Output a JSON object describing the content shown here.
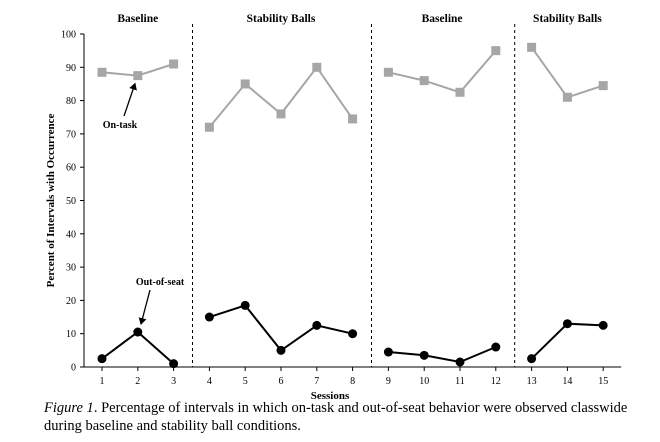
{
  "chart_data": {
    "type": "line",
    "ylabel": "Percent of Intervals with Occurrence",
    "xlabel": "Sessions",
    "ylim": [
      0,
      100
    ],
    "yticks": [
      0,
      10,
      20,
      30,
      40,
      50,
      60,
      70,
      80,
      90,
      100
    ],
    "xticks": [
      1,
      2,
      3,
      4,
      5,
      6,
      7,
      8,
      9,
      10,
      11,
      12,
      13,
      14,
      15
    ],
    "grid": false,
    "legend": "none",
    "phases": [
      {
        "label": "Baseline",
        "sessions": [
          1,
          3
        ]
      },
      {
        "label": "Stability Balls",
        "sessions": [
          4,
          8
        ]
      },
      {
        "label": "Baseline",
        "sessions": [
          9,
          12
        ]
      },
      {
        "label": "Stability Balls",
        "sessions": [
          13,
          15
        ]
      }
    ],
    "phase_dividers_after_session": [
      3,
      8,
      12
    ],
    "series": [
      {
        "color": "#a6a6a6",
        "marker": "square",
        "x": [
          1,
          2,
          3,
          4,
          5,
          6,
          7,
          8,
          9,
          10,
          11,
          12,
          13,
          14,
          15
        ],
        "values": [
          88.5,
          87.5,
          91,
          72,
          85,
          76,
          90,
          74.5,
          88.5,
          86,
          82.5,
          95,
          96,
          81,
          84.5
        ]
      },
      {
        "color": "#000000",
        "marker": "circle",
        "x": [
          1,
          2,
          3,
          4,
          5,
          6,
          7,
          8,
          9,
          10,
          11,
          12,
          13,
          14,
          15
        ],
        "values": [
          2.5,
          10.5,
          1,
          15,
          18.5,
          5,
          12.5,
          10,
          4.5,
          3.5,
          1.5,
          6,
          2.5,
          13,
          12.5
        ]
      }
    ],
    "annotations": [
      {
        "text": "On-task",
        "points_to": {
          "x": 2,
          "y": 87.5
        }
      },
      {
        "text": "Out-of-seat",
        "points_to": {
          "x": 2,
          "y": 10.5
        }
      }
    ]
  },
  "caption": {
    "figure_label": "Figure 1",
    "text": ". Percentage of intervals in which on-task and out-of-seat behavior were observed classwide during baseline and stability ball conditions."
  }
}
